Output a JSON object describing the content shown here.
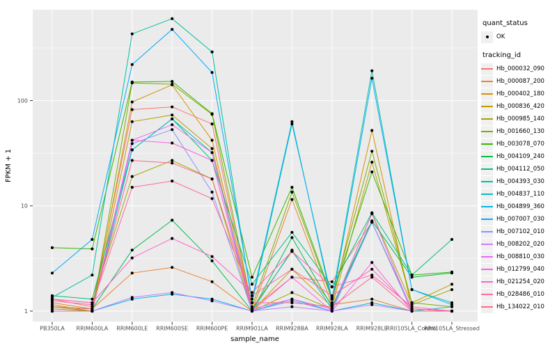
{
  "legend": {
    "quant_status_title": "quant_status",
    "quant_status_items": [
      {
        "label": "OK"
      }
    ],
    "tracking_id_title": "tracking_id"
  },
  "colors": {
    "panel_bg": "#EBEBEB",
    "grid": "#FFFFFF",
    "tick": "#333333",
    "tick_label": "#4D4D4D",
    "point": "#000000",
    "legend_key_bg": "#F0F0F0"
  },
  "chart_data": {
    "type": "line",
    "title": "",
    "xlabel": "sample_name",
    "ylabel": "FPKM + 1",
    "y_scale": "log10",
    "ylim": [
      0.8,
      730
    ],
    "yticks": [
      1,
      10,
      100
    ],
    "yticks_minor": [
      3.162,
      31.62,
      316.2
    ],
    "grid": true,
    "legend_position": "right",
    "point_shape": "solid-circle",
    "categories": [
      "PB350LA",
      "RRIM600LA",
      "RRIM600LE",
      "RRIM600SE",
      "RRIM600PE",
      "RRIM901LA",
      "RRIM928BA",
      "RRIM928LA",
      "RRIM928LE",
      "RRII105LA_Control",
      "RRII105LA_Stressed"
    ],
    "series": [
      {
        "name": "Hb_000032_090",
        "color": "#F8766D",
        "values": [
          1.3,
          1.1,
          82,
          87,
          60,
          1.05,
          2.1,
          1.9,
          7.0,
          1.05,
          1.0
        ]
      },
      {
        "name": "Hb_000087_200",
        "color": "#EA8331",
        "values": [
          1.2,
          1.05,
          2.3,
          2.6,
          1.9,
          1.0,
          11.5,
          1.15,
          1.3,
          1.0,
          1.0
        ]
      },
      {
        "name": "Hb_000402_180",
        "color": "#D89000",
        "values": [
          1.15,
          1.0,
          97,
          141,
          42,
          1.05,
          3.7,
          1.15,
          52,
          1.05,
          1.0
        ]
      },
      {
        "name": "Hb_000836_420",
        "color": "#C09B00",
        "values": [
          1.1,
          1.0,
          63,
          73,
          35,
          1.0,
          2.5,
          1.1,
          26,
          1.2,
          1.8
        ]
      },
      {
        "name": "Hb_000985_140",
        "color": "#A3A500",
        "values": [
          1.3,
          1.2,
          19,
          27,
          18,
          1.0,
          1.5,
          1.05,
          8.5,
          1.15,
          1.6
        ]
      },
      {
        "name": "Hb_001660_130",
        "color": "#7CAE00",
        "values": [
          1.05,
          1.0,
          147,
          143,
          74,
          1.1,
          13.5,
          1.3,
          33,
          1.2,
          1.1
        ]
      },
      {
        "name": "Hb_003078_070",
        "color": "#39B600",
        "values": [
          4.0,
          3.9,
          150,
          152,
          75,
          2.1,
          15,
          1.35,
          21,
          2.2,
          2.35
        ]
      },
      {
        "name": "Hb_004109_240",
        "color": "#00BB4E",
        "values": [
          1.1,
          1.05,
          3.8,
          7.3,
          3.0,
          1.0,
          5.0,
          1.1,
          7.2,
          2.1,
          2.3
        ]
      },
      {
        "name": "Hb_004112_050",
        "color": "#00C079",
        "values": [
          1.4,
          1.3,
          34,
          67,
          27,
          1.8,
          5.6,
          1.7,
          8.6,
          2.2,
          4.8
        ]
      },
      {
        "name": "Hb_004393_030",
        "color": "#00C19F",
        "values": [
          1.35,
          2.2,
          430,
          600,
          290,
          1.2,
          60,
          1.3,
          192,
          1.6,
          1.2
        ]
      },
      {
        "name": "Hb_004837_110",
        "color": "#00BFC4",
        "values": [
          1.0,
          1.0,
          34,
          67,
          32,
          1.0,
          3.8,
          1.05,
          7.0,
          1.0,
          1.1
        ]
      },
      {
        "name": "Hb_004899_360",
        "color": "#00B8E7",
        "values": [
          1.0,
          1.0,
          1.3,
          1.45,
          1.3,
          1.0,
          1.3,
          1.0,
          1.2,
          1.0,
          1.0
        ]
      },
      {
        "name": "Hb_007007_030",
        "color": "#00ACFC",
        "values": [
          2.3,
          4.8,
          220,
          475,
          185,
          1.3,
          63,
          1.2,
          163,
          1.6,
          1.15
        ]
      },
      {
        "name": "Hb_007102_010",
        "color": "#8B93FF",
        "values": [
          1.0,
          1.0,
          39,
          53,
          13.5,
          1.0,
          1.25,
          1.0,
          7.0,
          1.0,
          1.0
        ]
      },
      {
        "name": "Hb_008202_020",
        "color": "#C77CFF",
        "values": [
          1.0,
          1.0,
          1.35,
          1.5,
          1.25,
          1.0,
          1.1,
          1.0,
          1.15,
          1.0,
          1.0
        ]
      },
      {
        "name": "Hb_008810_030",
        "color": "#E76BF3",
        "values": [
          1.0,
          1.0,
          42,
          59,
          32,
          1.05,
          1.3,
          1.05,
          8.4,
          1.0,
          1.0
        ]
      },
      {
        "name": "Hb_012799_040",
        "color": "#FA62DB",
        "values": [
          1.0,
          1.0,
          42,
          39.5,
          27,
          1.0,
          2.1,
          1.0,
          2.9,
          1.0,
          1.0
        ]
      },
      {
        "name": "Hb_021254_020",
        "color": "#FF61C9",
        "values": [
          1.3,
          1.2,
          3.2,
          4.9,
          3.3,
          1.5,
          3.7,
          1.7,
          2.2,
          1.1,
          1.0
        ]
      },
      {
        "name": "Hb_028486_010",
        "color": "#FF68A1",
        "values": [
          1.25,
          1.15,
          15,
          17.2,
          11.7,
          1.4,
          2.5,
          1.4,
          2.5,
          1.05,
          1.0
        ]
      },
      {
        "name": "Hb_134022_010",
        "color": "#FC6A86",
        "values": [
          1.1,
          1.05,
          27,
          25.5,
          18,
          1.2,
          1.2,
          1.1,
          2.1,
          1.0,
          1.0
        ]
      }
    ]
  }
}
